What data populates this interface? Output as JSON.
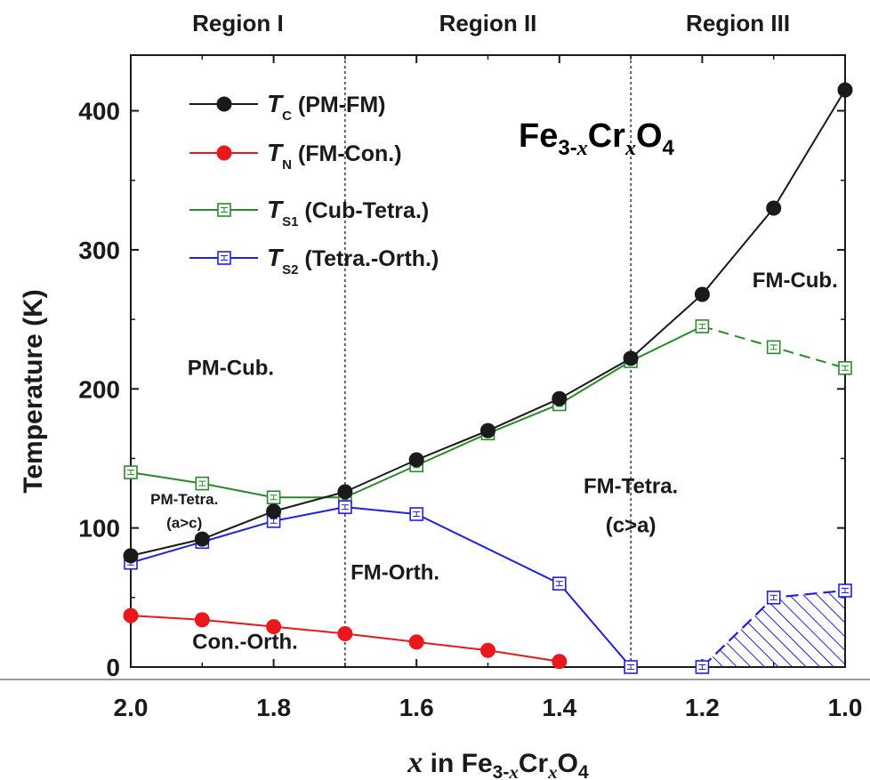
{
  "chart_data": {
    "type": "line",
    "title": "",
    "compound": {
      "base": "Fe",
      "s1": "3-",
      "x1": "x",
      "mid": "Cr",
      "x2": "x",
      "end": "O",
      "s2": "4"
    },
    "xlabel": {
      "var": "x",
      "text": " in Fe",
      "s1": "3-",
      "x1": "x",
      "mid": "Cr",
      "x2": "x",
      "end": "O",
      "s2": "4"
    },
    "ylabel": "Temperature (K)",
    "xlim": [
      2.0,
      1.0
    ],
    "ylim": [
      0,
      440
    ],
    "x_reversed": true,
    "x_ticks": [
      2.0,
      1.8,
      1.6,
      1.4,
      1.2,
      1.0
    ],
    "x_tick_labels": [
      "2.0",
      "1.8",
      "1.6",
      "1.4",
      "1.2",
      "1.0"
    ],
    "y_ticks": [
      0,
      100,
      200,
      300,
      400
    ],
    "y_tick_labels": [
      "0",
      "100",
      "200",
      "300",
      "400"
    ],
    "region_boundaries": [
      1.7,
      1.3
    ],
    "regions": [
      "Region I",
      "Region II",
      "Region III"
    ],
    "series": [
      {
        "name": "T_C",
        "symbol": "T",
        "sub": "C",
        "label": " (PM-FM)",
        "color": "#1a1a1a",
        "marker": "filled-circle",
        "x": [
          2.0,
          1.9,
          1.8,
          1.7,
          1.6,
          1.5,
          1.4,
          1.3,
          1.2,
          1.1,
          1.0
        ],
        "y": [
          80,
          92,
          112,
          126,
          149,
          170,
          193,
          222,
          268,
          330,
          415
        ]
      },
      {
        "name": "T_N",
        "symbol": "T",
        "sub": "N",
        "label": " (FM-Con.)",
        "color": "#e8181c",
        "marker": "filled-circle",
        "x": [
          2.0,
          1.9,
          1.8,
          1.7,
          1.6,
          1.5,
          1.4
        ],
        "y": [
          37,
          34,
          29,
          24,
          18,
          12,
          4
        ]
      },
      {
        "name": "T_S1",
        "symbol": "T",
        "sub": "S1",
        "label": " (Cub-Tetra.)",
        "color": "#2a8a2a",
        "marker": "open-square",
        "x": [
          2.0,
          1.9,
          1.8,
          1.7,
          1.6,
          1.5,
          1.4,
          1.3,
          1.2,
          1.1,
          1.0
        ],
        "y": [
          140,
          132,
          122,
          122,
          145,
          168,
          189,
          220,
          245,
          230,
          215
        ],
        "dashed_from_index": 8
      },
      {
        "name": "T_S2",
        "symbol": "T",
        "sub": "S2",
        "label": " (Tetra.-Orth.)",
        "color": "#2020e0",
        "marker": "open-square",
        "x": [
          2.0,
          1.9,
          1.8,
          1.7,
          1.6,
          1.4,
          1.3
        ],
        "y": [
          75,
          90,
          105,
          115,
          110,
          60,
          0
        ]
      }
    ],
    "extra_points": {
      "T_S2_region3": {
        "x": [
          1.2,
          1.1,
          1.0
        ],
        "y": [
          0,
          50,
          55
        ],
        "color": "#2020e0"
      }
    },
    "hatched_area": {
      "upper_x": [
        1.2,
        1.1,
        1.0
      ],
      "upper_y": [
        0,
        50,
        55
      ],
      "color": "#2020e0"
    },
    "phase_labels": [
      {
        "text": "PM-Cub.",
        "x": 1.86,
        "y": 210,
        "size": "normal"
      },
      {
        "text": "PM-Tetra.",
        "x": 1.925,
        "y": 117,
        "size": "small"
      },
      {
        "text": "(a>c)",
        "x": 1.925,
        "y": 100,
        "size": "small"
      },
      {
        "text": "FM-Orth.",
        "x": 1.63,
        "y": 63,
        "size": "normal"
      },
      {
        "text": "Con.-Orth.",
        "x": 1.84,
        "y": 13,
        "size": "normal"
      },
      {
        "text": "FM-Tetra.",
        "x": 1.3,
        "y": 125,
        "size": "normal"
      },
      {
        "text": "(c>a)",
        "x": 1.3,
        "y": 97,
        "size": "normal"
      },
      {
        "text": "FM-Cub.",
        "x": 1.07,
        "y": 273,
        "size": "normal"
      }
    ],
    "legend": {
      "position": "top-left"
    },
    "grid": false
  }
}
